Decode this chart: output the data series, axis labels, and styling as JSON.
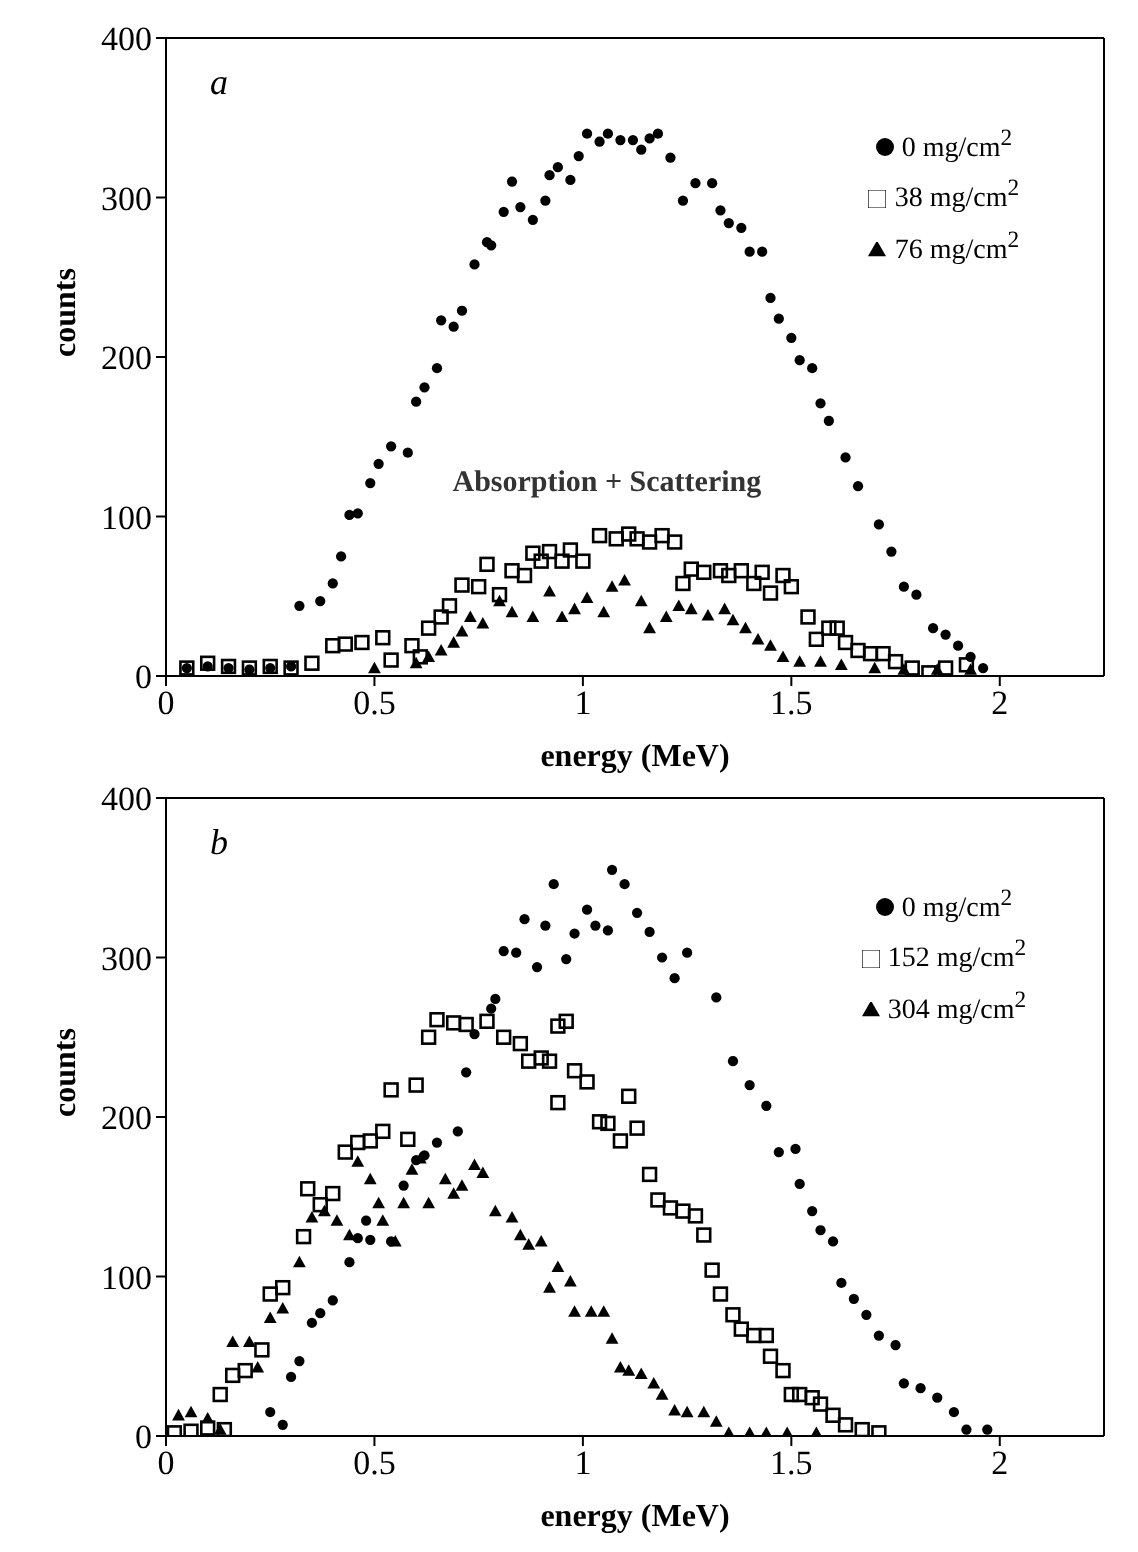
{
  "chart_data": [
    {
      "type": "scatter",
      "title": "a",
      "xlabel": "energy (MeV)",
      "ylabel": "counts",
      "xlim": [
        0,
        2.25
      ],
      "xticks": [
        0,
        0.5,
        1,
        1.5,
        2
      ],
      "ylim": [
        0,
        400
      ],
      "yticks": [
        0,
        100,
        200,
        300,
        400
      ],
      "legend": "top right",
      "grid": false,
      "annotations": [
        "Absorption + Scattering"
      ],
      "series": [
        {
          "name": "0 mg/cm$^{2}$",
          "color": "#000000",
          "marker": "circle",
          "x": [
            0.05,
            0.1,
            0.15,
            0.2,
            0.25,
            0.3,
            0.32,
            0.37,
            0.4,
            0.42,
            0.44,
            0.46,
            0.49,
            0.51,
            0.54,
            0.58,
            0.6,
            0.62,
            0.65,
            0.66,
            0.69,
            0.71,
            0.74,
            0.77,
            0.78,
            0.81,
            0.83,
            0.85,
            0.88,
            0.91,
            0.92,
            0.94,
            0.97,
            0.99,
            1.01,
            1.04,
            1.06,
            1.09,
            1.12,
            1.14,
            1.16,
            1.18,
            1.21,
            1.24,
            1.27,
            1.31,
            1.33,
            1.35,
            1.38,
            1.4,
            1.43,
            1.45,
            1.47,
            1.5,
            1.52,
            1.55,
            1.57,
            1.59,
            1.63,
            1.66,
            1.71,
            1.74,
            1.77,
            1.8,
            1.84,
            1.87,
            1.9,
            1.93,
            1.96
          ],
          "values": [
            5,
            6,
            5,
            4,
            5,
            6,
            44,
            47,
            58,
            75,
            101,
            102,
            121,
            133,
            144,
            140,
            172,
            181,
            193,
            223,
            219,
            229,
            258,
            272,
            270,
            291,
            310,
            294,
            286,
            298,
            314,
            319,
            311,
            326,
            340,
            335,
            340,
            336,
            336,
            330,
            337,
            340,
            325,
            298,
            309,
            309,
            292,
            284,
            281,
            266,
            266,
            237,
            224,
            212,
            198,
            193,
            171,
            160,
            137,
            119,
            95,
            78,
            56,
            51,
            30,
            26,
            19,
            12,
            5
          ]
        },
        {
          "name": "38 mg/cm$^{2}$",
          "color": "#000000",
          "marker": "square",
          "x": [
            0.05,
            0.1,
            0.15,
            0.2,
            0.25,
            0.3,
            0.35,
            0.4,
            0.43,
            0.47,
            0.52,
            0.54,
            0.59,
            0.61,
            0.63,
            0.66,
            0.68,
            0.71,
            0.75,
            0.77,
            0.8,
            0.83,
            0.86,
            0.88,
            0.9,
            0.92,
            0.95,
            0.97,
            1.0,
            1.04,
            1.08,
            1.11,
            1.13,
            1.16,
            1.19,
            1.22,
            1.24,
            1.26,
            1.29,
            1.33,
            1.35,
            1.38,
            1.41,
            1.43,
            1.45,
            1.48,
            1.5,
            1.54,
            1.56,
            1.59,
            1.61,
            1.63,
            1.66,
            1.69,
            1.72,
            1.75,
            1.79,
            1.83,
            1.87,
            1.92
          ],
          "values": [
            5,
            8,
            6,
            5,
            6,
            5,
            8,
            19,
            20,
            21,
            24,
            10,
            19,
            12,
            30,
            37,
            44,
            57,
            56,
            70,
            51,
            66,
            63,
            77,
            72,
            78,
            72,
            79,
            72,
            88,
            86,
            89,
            86,
            84,
            88,
            84,
            58,
            67,
            65,
            66,
            63,
            66,
            58,
            65,
            52,
            63,
            56,
            37,
            23,
            30,
            30,
            21,
            16,
            14,
            14,
            9,
            5,
            2,
            5,
            7
          ]
        },
        {
          "name": "76 mg/cm$^{2}$",
          "color": "#000000",
          "marker": "triangle",
          "x": [
            0.5,
            0.6,
            0.63,
            0.66,
            0.69,
            0.71,
            0.73,
            0.76,
            0.8,
            0.83,
            0.88,
            0.92,
            0.95,
            0.98,
            1.01,
            1.05,
            1.07,
            1.1,
            1.14,
            1.16,
            1.2,
            1.23,
            1.26,
            1.3,
            1.34,
            1.36,
            1.39,
            1.42,
            1.45,
            1.48,
            1.52,
            1.57,
            1.62,
            1.7,
            1.77,
            1.85,
            1.93
          ],
          "values": [
            5,
            8,
            12,
            16,
            21,
            28,
            37,
            33,
            47,
            40,
            37,
            53,
            37,
            42,
            49,
            40,
            56,
            60,
            47,
            30,
            37,
            44,
            42,
            38,
            42,
            35,
            30,
            23,
            19,
            12,
            9,
            9,
            7,
            5,
            4,
            4,
            4
          ]
        }
      ]
    },
    {
      "type": "scatter",
      "title": "b",
      "xlabel": "energy (MeV)",
      "ylabel": "counts",
      "xlim": [
        0,
        2.25
      ],
      "xticks": [
        0,
        0.5,
        1,
        1.5,
        2
      ],
      "ylim": [
        0,
        400
      ],
      "yticks": [
        0,
        100,
        200,
        300,
        400
      ],
      "legend": "top right",
      "grid": false,
      "series": [
        {
          "name": "0 mg/cm$^{2}$",
          "color": "#000000",
          "marker": "circle",
          "x": [
            0.25,
            0.28,
            0.3,
            0.32,
            0.35,
            0.37,
            0.4,
            0.44,
            0.46,
            0.48,
            0.49,
            0.54,
            0.57,
            0.6,
            0.62,
            0.65,
            0.7,
            0.72,
            0.74,
            0.78,
            0.79,
            0.81,
            0.84,
            0.86,
            0.89,
            0.91,
            0.93,
            0.96,
            0.98,
            1.01,
            1.03,
            1.06,
            1.07,
            1.1,
            1.13,
            1.16,
            1.19,
            1.22,
            1.25,
            1.32,
            1.36,
            1.4,
            1.44,
            1.47,
            1.51,
            1.52,
            1.55,
            1.57,
            1.6,
            1.62,
            1.65,
            1.68,
            1.71,
            1.75,
            1.77,
            1.81,
            1.85,
            1.89,
            1.92,
            1.97
          ],
          "values": [
            15,
            7,
            37,
            47,
            71,
            77,
            85,
            109,
            124,
            135,
            123,
            122,
            157,
            173,
            176,
            184,
            191,
            228,
            252,
            268,
            274,
            304,
            303,
            324,
            294,
            320,
            346,
            299,
            315,
            330,
            320,
            317,
            355,
            346,
            328,
            316,
            300,
            287,
            303,
            275,
            235,
            220,
            207,
            178,
            180,
            158,
            141,
            129,
            122,
            96,
            86,
            76,
            63,
            57,
            33,
            30,
            24,
            15,
            4,
            4
          ]
        },
        {
          "name": "152 mg/cm$^{2}$",
          "color": "#000000",
          "marker": "square",
          "x": [
            0.02,
            0.06,
            0.1,
            0.13,
            0.14,
            0.16,
            0.19,
            0.23,
            0.25,
            0.28,
            0.33,
            0.34,
            0.37,
            0.4,
            0.43,
            0.46,
            0.49,
            0.52,
            0.54,
            0.58,
            0.6,
            0.63,
            0.65,
            0.69,
            0.72,
            0.77,
            0.81,
            0.85,
            0.87,
            0.9,
            0.92,
            0.94,
            0.94,
            0.96,
            0.98,
            1.01,
            1.04,
            1.06,
            1.09,
            1.11,
            1.13,
            1.16,
            1.18,
            1.21,
            1.24,
            1.27,
            1.29,
            1.31,
            1.33,
            1.36,
            1.38,
            1.41,
            1.44,
            1.45,
            1.48,
            1.5,
            1.52,
            1.55,
            1.57,
            1.6,
            1.63,
            1.67,
            1.71
          ],
          "values": [
            2,
            3,
            5,
            26,
            4,
            38,
            41,
            54,
            89,
            93,
            125,
            155,
            145,
            152,
            178,
            184,
            185,
            191,
            217,
            186,
            220,
            250,
            261,
            259,
            258,
            260,
            250,
            246,
            235,
            237,
            235,
            257,
            209,
            260,
            229,
            222,
            197,
            196,
            185,
            213,
            193,
            164,
            148,
            143,
            141,
            138,
            126,
            104,
            89,
            76,
            67,
            63,
            63,
            50,
            41,
            26,
            26,
            24,
            20,
            13,
            7,
            4,
            2
          ]
        },
        {
          "name": "304 mg/cm$^{2}$",
          "color": "#000000",
          "marker": "triangle",
          "x": [
            0.03,
            0.06,
            0.1,
            0.13,
            0.16,
            0.2,
            0.22,
            0.25,
            0.28,
            0.32,
            0.35,
            0.38,
            0.41,
            0.44,
            0.46,
            0.49,
            0.51,
            0.52,
            0.55,
            0.57,
            0.59,
            0.61,
            0.63,
            0.67,
            0.69,
            0.71,
            0.74,
            0.76,
            0.79,
            0.83,
            0.85,
            0.87,
            0.9,
            0.92,
            0.94,
            0.97,
            0.98,
            1.02,
            1.05,
            1.07,
            1.09,
            1.11,
            1.14,
            1.17,
            1.19,
            1.22,
            1.25,
            1.29,
            1.32,
            1.35,
            1.4,
            1.44,
            1.49,
            1.56
          ],
          "values": [
            13,
            15,
            11,
            4,
            59,
            59,
            43,
            74,
            80,
            109,
            137,
            141,
            135,
            126,
            172,
            161,
            146,
            135,
            122,
            146,
            167,
            174,
            146,
            161,
            152,
            157,
            170,
            165,
            141,
            137,
            126,
            120,
            122,
            93,
            106,
            97,
            78,
            78,
            78,
            61,
            43,
            41,
            39,
            33,
            26,
            16,
            15,
            15,
            9,
            2,
            2,
            2,
            2,
            2
          ]
        }
      ]
    }
  ]
}
